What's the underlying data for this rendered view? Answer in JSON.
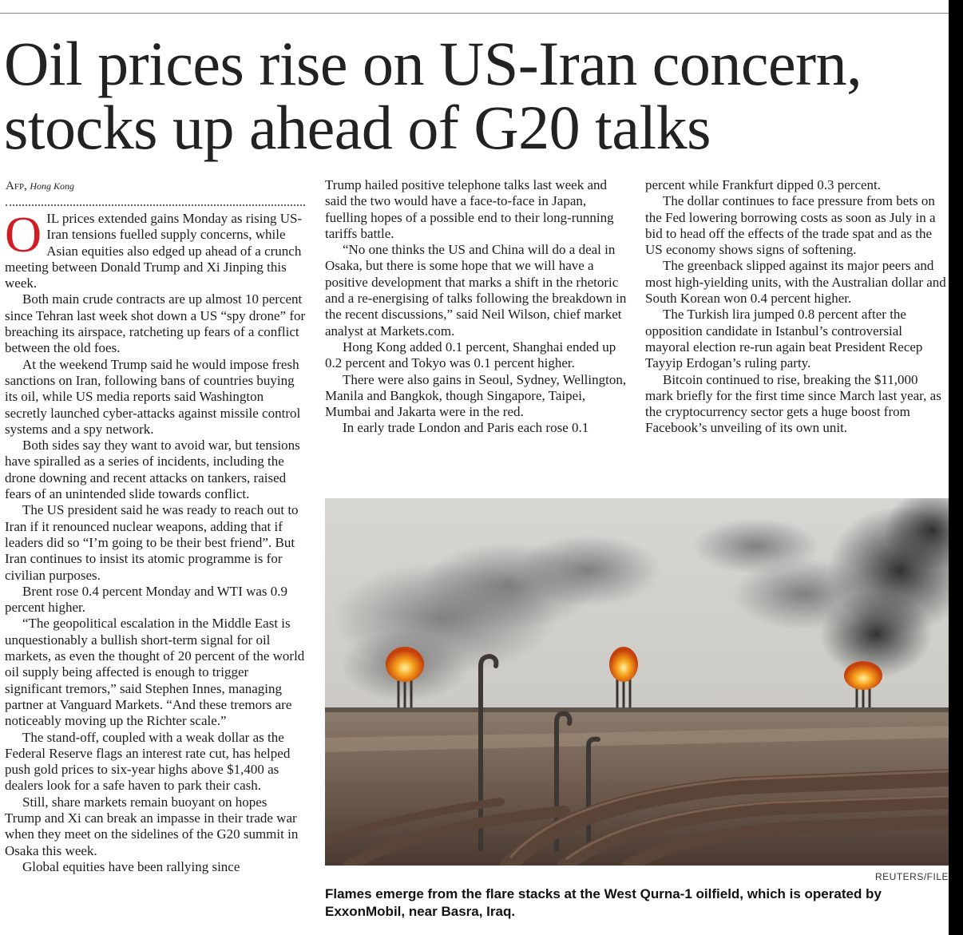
{
  "article": {
    "headline_line1": "Oil prices rise on US-Iran concern,",
    "headline_line2": "stocks up ahead of G20 talks",
    "byline_agency": "Afp,",
    "byline_place": "Hong Kong",
    "dropcap": "O",
    "col1": [
      "IL prices extended gains Monday as rising US-Iran tensions fuelled supply concerns, while Asian equities also edged up ahead of a crunch meeting between Donald Trump and Xi Jinping this week.",
      "Both main crude contracts are up almost 10 percent since Tehran last week shot down a US “spy drone” for breaching its airspace, ratcheting up fears of a conflict between the old foes.",
      "At the weekend Trump said he would impose fresh sanctions on Iran, following bans of countries buying its oil, while US media reports said Washington secretly launched cyber-attacks against missile control systems and a spy network.",
      "Both sides say they want to avoid war, but tensions have spiralled as a series of incidents, including the drone downing and recent attacks on tankers, raised fears of an unintended slide towards conflict.",
      "The US president said he was ready to reach out to Iran if it renounced nuclear weapons, adding that if leaders did so “I’m going to be their best friend”. But Iran continues to insist its atomic programme is for civilian purposes.",
      "Brent rose 0.4 percent Monday and WTI was 0.9 percent higher.",
      "“The geopolitical escalation in the Middle East is unquestionably a bullish short-term signal for oil markets, as even the thought of 20 percent of the world oil supply being affected is enough to trigger significant tremors,” said Stephen Innes, managing partner at Vanguard Markets. “And these tremors are noticeably moving up the Richter scale.”",
      "The stand-off, coupled with a weak dollar as the Federal Reserve flags an interest rate cut, has helped push gold prices to six-year highs above $1,400 as dealers look for a safe haven to park their cash.",
      "Still, share markets remain buoyant on hopes Trump and Xi can break an impasse in their trade war when they meet on the sidelines of the G20 summit in Osaka this week.",
      "Global equities have been rallying since"
    ],
    "col2": [
      "Trump hailed positive telephone talks last week and said the two would have a face-to-face in Japan, fuelling hopes of a possible end to their long-running tariffs battle.",
      "“No one thinks the US and China will do a deal in Osaka, but there is some hope that we will have a positive development that marks a shift in the rhetoric and a re-energising of talks following the breakdown in the recent discussions,” said Neil Wilson, chief market analyst at Markets.com.",
      "Hong Kong added 0.1 percent, Shanghai ended up 0.2 percent and Tokyo was 0.1 percent higher.",
      "There were also gains in Seoul, Sydney, Wellington, Manila and Bangkok, though Singapore, Taipei, Mumbai and Jakarta were in the red.",
      "In early trade London and Paris each rose 0.1"
    ],
    "col3": [
      "percent while Frankfurt dipped 0.3 percent.",
      "The dollar continues to face pressure from bets on the Fed lowering borrowing costs as soon as July in a bid to head off the effects of the trade spat and as the US economy shows signs of softening.",
      "The greenback slipped against its major peers and most high-yielding units, with the Australian dollar and South Korean won 0.4 percent higher.",
      "The Turkish lira jumped 0.8 percent after the opposition candidate in Istanbul’s controversial mayoral election re-run again beat President Recep Tayyip Erdogan’s ruling party.",
      "Bitcoin continued to rise, breaking the $11,000 mark briefly for the first time since March last year, as the cryptocurrency sector gets a huge boost from Facebook’s unveiling of its own unit."
    ],
    "photo_credit": "REUTERS/FILE",
    "caption": "Flames emerge from the flare stacks at the West Qurna-1 oilfield, which is operated by ExxonMobil, near Basra, Iraq."
  },
  "colors": {
    "dropcap": "#d01e24",
    "rule": "#888888"
  }
}
